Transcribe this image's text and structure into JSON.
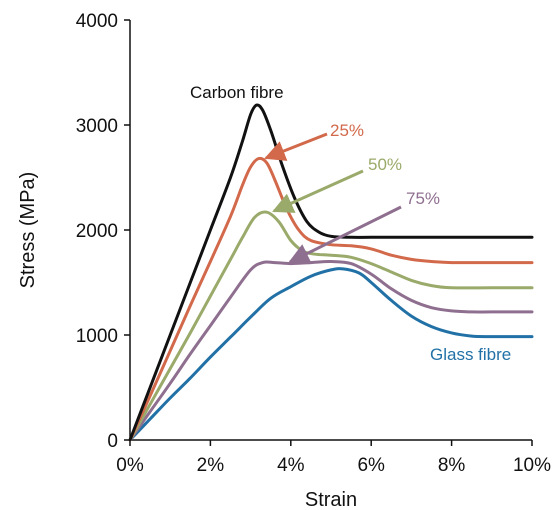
{
  "chart_data": {
    "type": "line",
    "title": "",
    "xlabel": "Strain",
    "ylabel": "Stress (MPa)",
    "xlim": [
      0,
      10
    ],
    "ylim": [
      0,
      4000
    ],
    "x_unit": "%",
    "x_ticks": [
      "0%",
      "2%",
      "4%",
      "6%",
      "8%",
      "10%"
    ],
    "y_ticks": [
      "0",
      "1000",
      "2000",
      "3000",
      "4000"
    ],
    "grid": false,
    "legend": "none (series labelled directly on the plot, 25%/50%/75% with arrows)",
    "series": [
      {
        "name": "Carbon fibre",
        "color": "#111111",
        "x": [
          0,
          0.5,
          1,
          1.5,
          2,
          2.5,
          2.8,
          3.0,
          3.15,
          3.3,
          3.5,
          3.8,
          4.1,
          4.4,
          4.7,
          5.0,
          5.5,
          6,
          7,
          8,
          9,
          10
        ],
        "y": [
          0,
          500,
          1000,
          1500,
          2000,
          2500,
          2850,
          3100,
          3190,
          3140,
          2950,
          2600,
          2300,
          2080,
          1980,
          1940,
          1930,
          1930,
          1930,
          1930,
          1930,
          1930
        ]
      },
      {
        "name": "25%",
        "color": "#d2694b",
        "x": [
          0,
          0.5,
          1,
          1.5,
          2,
          2.5,
          2.8,
          3.0,
          3.2,
          3.4,
          3.6,
          3.9,
          4.2,
          4.5,
          5.0,
          5.5,
          6,
          6.5,
          7,
          7.5,
          8,
          9,
          10
        ],
        "y": [
          0,
          420,
          850,
          1280,
          1700,
          2130,
          2430,
          2600,
          2680,
          2640,
          2480,
          2200,
          2000,
          1900,
          1860,
          1850,
          1820,
          1760,
          1720,
          1700,
          1690,
          1690,
          1690
        ]
      },
      {
        "name": "50%",
        "color": "#9aaa6a",
        "x": [
          0,
          0.5,
          1,
          1.5,
          2,
          2.5,
          2.8,
          3.1,
          3.4,
          3.7,
          4.0,
          4.3,
          4.6,
          5.0,
          5.5,
          6,
          6.5,
          7,
          7.5,
          8,
          9,
          10
        ],
        "y": [
          0,
          340,
          680,
          1020,
          1370,
          1720,
          1930,
          2120,
          2170,
          2080,
          1900,
          1800,
          1770,
          1760,
          1740,
          1680,
          1600,
          1520,
          1470,
          1450,
          1450,
          1450
        ]
      },
      {
        "name": "75%",
        "color": "#8f6f8f",
        "x": [
          0,
          0.5,
          1,
          1.5,
          2,
          2.5,
          3.0,
          3.3,
          3.6,
          4.0,
          4.5,
          5.0,
          5.5,
          6.0,
          6.5,
          7,
          7.5,
          8,
          8.5,
          9,
          10
        ],
        "y": [
          0,
          270,
          540,
          820,
          1090,
          1360,
          1620,
          1690,
          1690,
          1680,
          1690,
          1700,
          1680,
          1580,
          1440,
          1330,
          1260,
          1230,
          1220,
          1220,
          1220
        ]
      },
      {
        "name": "Glass fibre",
        "color": "#2271a6",
        "x": [
          0,
          0.5,
          1,
          1.5,
          2,
          2.5,
          3,
          3.5,
          4,
          4.5,
          5.0,
          5.3,
          5.7,
          6.0,
          6.5,
          7.0,
          7.5,
          8.0,
          8.5,
          9,
          10
        ],
        "y": [
          0,
          200,
          400,
          590,
          790,
          980,
          1170,
          1350,
          1460,
          1560,
          1620,
          1630,
          1590,
          1500,
          1330,
          1180,
          1080,
          1020,
          990,
          985,
          985
        ]
      }
    ],
    "annotations": [
      {
        "text": "Carbon fibre",
        "color": "#111111"
      },
      {
        "text": "25%",
        "color": "#d2694b",
        "arrow": true,
        "points_to": [
          3.2,
          2680
        ]
      },
      {
        "text": "50%",
        "color": "#9aaa6a",
        "arrow": true,
        "points_to": [
          3.4,
          2170
        ]
      },
      {
        "text": "75%",
        "color": "#8f6f8f",
        "arrow": true,
        "points_to": [
          3.8,
          1690
        ]
      },
      {
        "text": "Glass fibre",
        "color": "#2271a6"
      }
    ]
  }
}
